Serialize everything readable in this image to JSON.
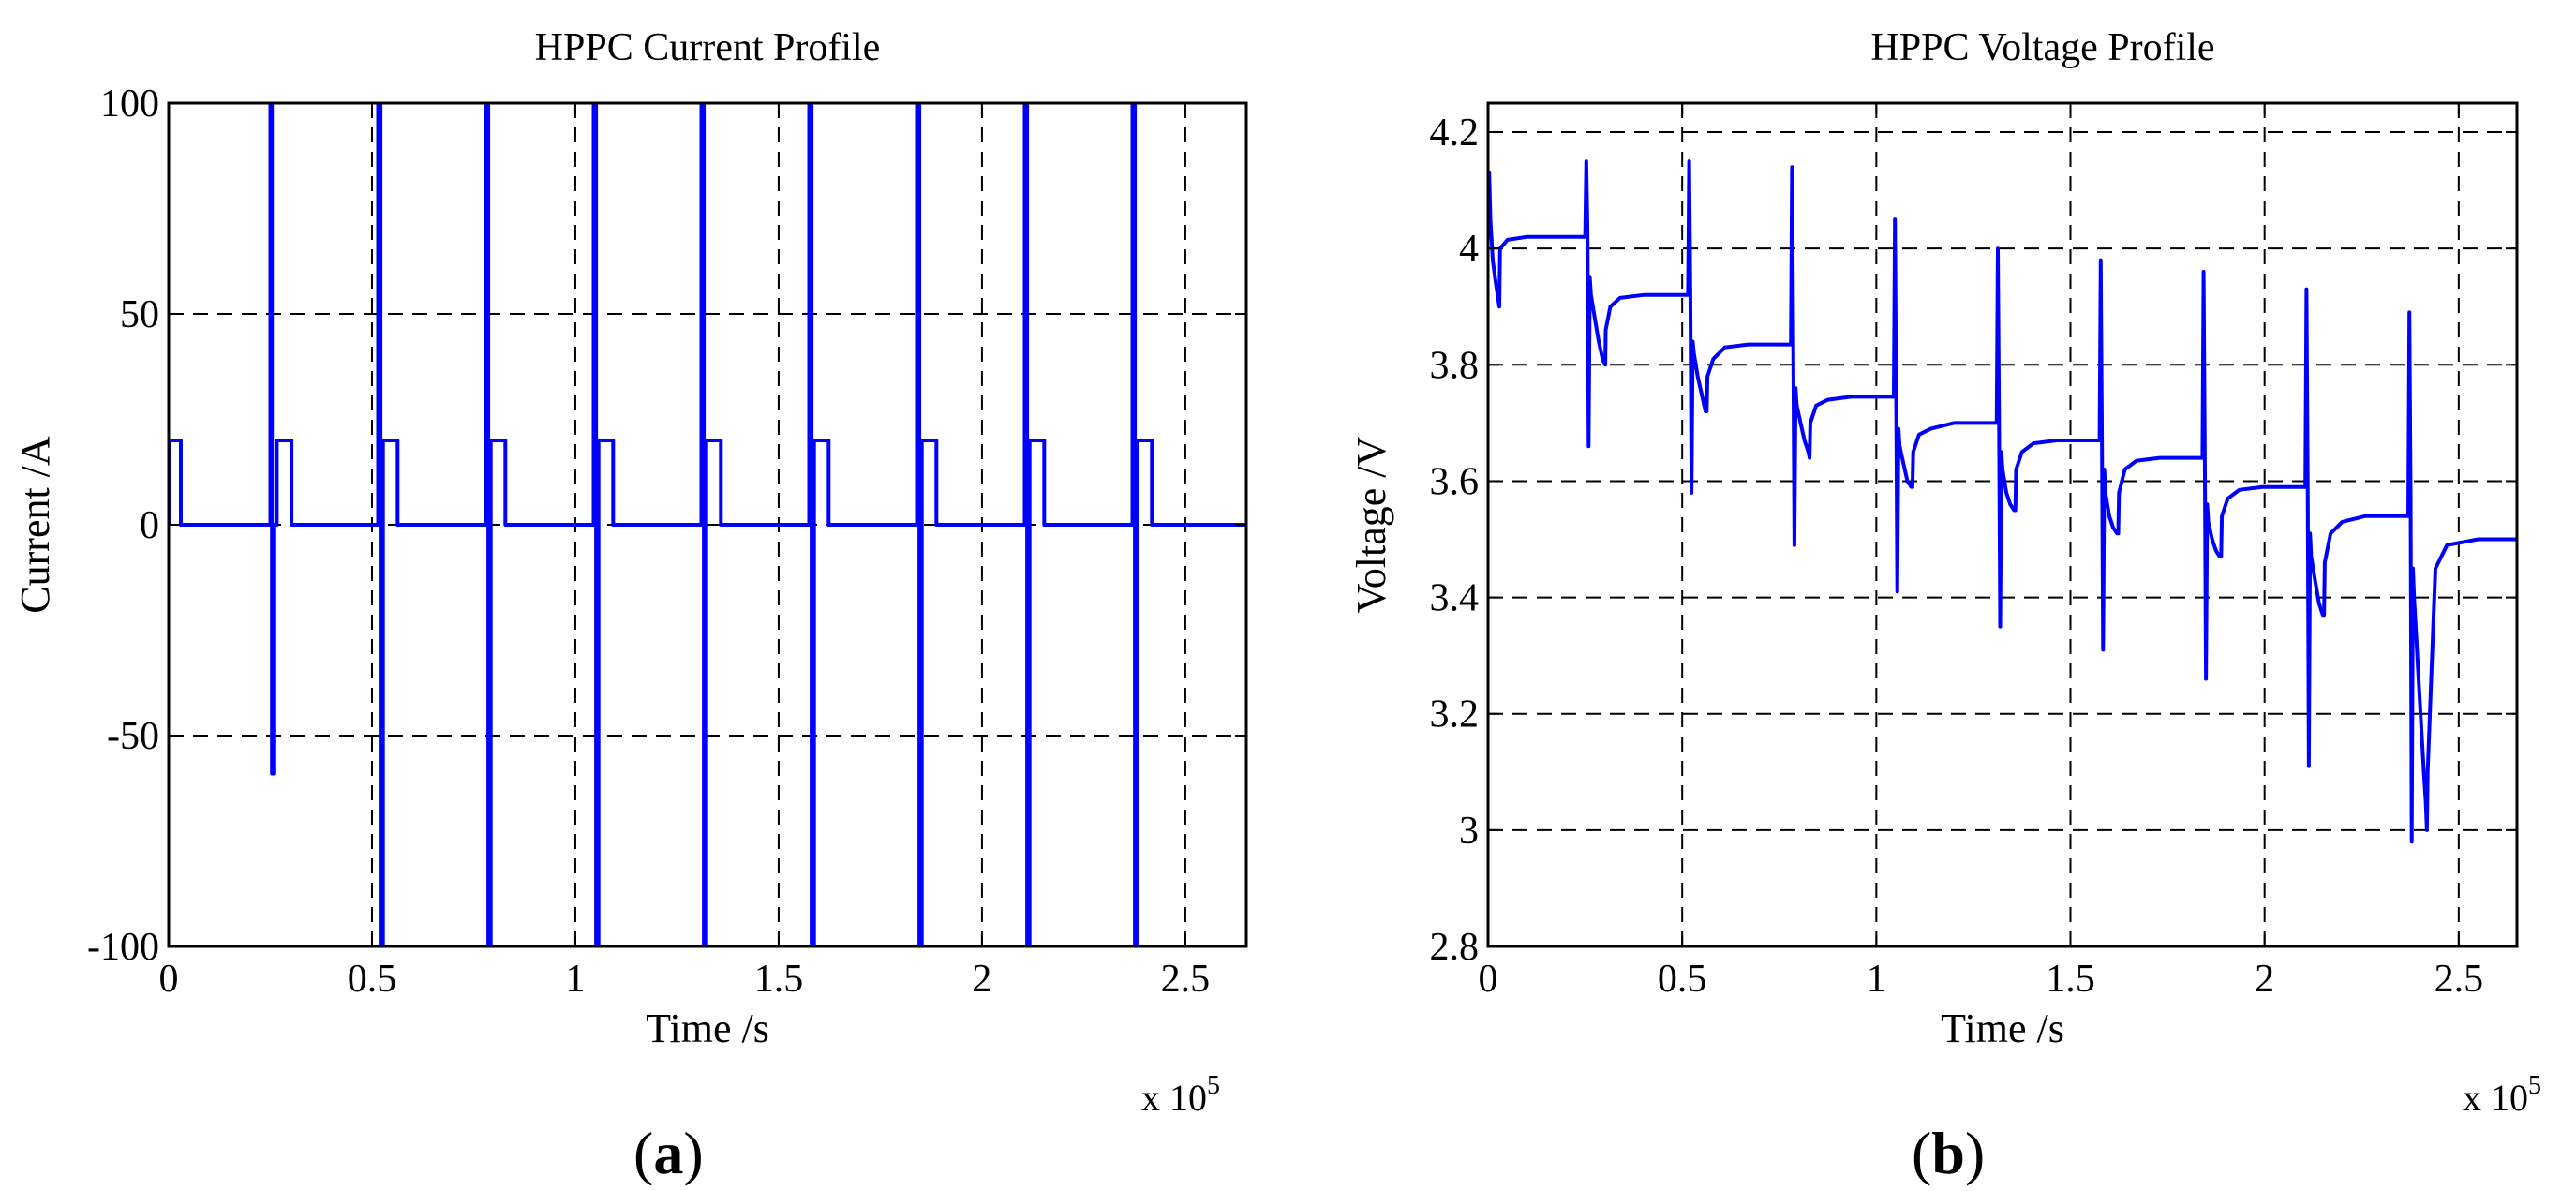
{
  "colors": {
    "series": "#0000ff",
    "grid": "#000000",
    "axes": "#000000",
    "background": "#ffffff"
  },
  "chart_data": [
    {
      "type": "line",
      "panel_label_open": "(",
      "panel_label_letter": "a",
      "panel_label_close": ")",
      "title": "HPPC Current Profile",
      "xlabel": "Time /s",
      "ylabel": "Current /A",
      "x_exponent_text": "x 10",
      "x_exponent_power": "5",
      "x_unit_scale": 100000,
      "xlim": [
        0,
        265000
      ],
      "ylim": [
        -100,
        100
      ],
      "grid": true,
      "xticks": [
        0,
        50000,
        100000,
        150000,
        200000,
        250000
      ],
      "xtick_labels": [
        "0",
        "0.5",
        "1",
        "1.5",
        "2",
        "2.5"
      ],
      "yticks": [
        -100,
        -50,
        0,
        50,
        100
      ],
      "ytick_labels": [
        "-100",
        "-50",
        "0",
        "50",
        "100"
      ],
      "series": [
        {
          "x": [
            0,
            0,
            3000,
            3000,
            25000,
            25000,
            25400,
            25400,
            26000,
            26000,
            26600,
            26600,
            30200,
            30200,
            51500,
            51500,
            52100,
            52100,
            52700,
            52700,
            56300,
            56300,
            78000,
            78000,
            78600,
            78600,
            79200,
            79200,
            82800,
            82800,
            104500,
            104500,
            105100,
            105100,
            105700,
            105700,
            109300,
            109300,
            131000,
            131000,
            131600,
            131600,
            132200,
            132200,
            135800,
            135800,
            157500,
            157500,
            158100,
            158100,
            158700,
            158700,
            162300,
            162300,
            184000,
            184000,
            184600,
            184600,
            185200,
            185200,
            188800,
            188800,
            210500,
            210500,
            211100,
            211100,
            211700,
            211700,
            215300,
            215300,
            237000,
            237000,
            237600,
            237600,
            238200,
            238200,
            241800,
            241800,
            265000
          ],
          "y": [
            0,
            20,
            20,
            0,
            0,
            100,
            100,
            -59,
            -59,
            0,
            0,
            20,
            20,
            0,
            0,
            100,
            100,
            -100,
            -100,
            20,
            20,
            0,
            0,
            100,
            100,
            -100,
            -100,
            20,
            20,
            0,
            0,
            100,
            100,
            -100,
            -100,
            20,
            20,
            0,
            0,
            100,
            100,
            -100,
            -100,
            20,
            20,
            0,
            0,
            100,
            100,
            -100,
            -100,
            20,
            20,
            0,
            0,
            100,
            100,
            -100,
            -100,
            20,
            20,
            0,
            0,
            100,
            100,
            -100,
            -100,
            20,
            20,
            0,
            0,
            100,
            100,
            -100,
            -100,
            20,
            20,
            0,
            0
          ]
        }
      ]
    },
    {
      "type": "line",
      "panel_label_open": "(",
      "panel_label_letter": "b",
      "panel_label_close": ")",
      "title": "HPPC Voltage Profile",
      "xlabel": "Time /s",
      "ylabel": "Voltage /V",
      "x_exponent_text": "x 10",
      "x_exponent_power": "5",
      "x_unit_scale": 100000,
      "xlim": [
        0,
        265000
      ],
      "ylim": [
        2.8,
        4.25
      ],
      "grid": true,
      "xticks": [
        0,
        50000,
        100000,
        150000,
        200000,
        250000
      ],
      "xtick_labels": [
        "0",
        "0.5",
        "1",
        "1.5",
        "2",
        "2.5"
      ],
      "yticks": [
        2.8,
        3.0,
        3.2,
        3.4,
        3.6,
        3.8,
        4.0,
        4.2
      ],
      "ytick_labels": [
        "2.8",
        "3",
        "3.2",
        "3.4",
        "3.6",
        "3.8",
        "4",
        "4.2"
      ],
      "series": [
        {
          "x": [
            0,
            300,
            600,
            1200,
            2000,
            2900,
            3000,
            3100,
            5000,
            10000,
            25000,
            25300,
            25600,
            25900,
            26200,
            26500,
            27500,
            28500,
            29500,
            30200,
            30300,
            31500,
            34000,
            40000,
            51500,
            51800,
            52100,
            52400,
            52700,
            53000,
            54000,
            55000,
            56000,
            56300,
            56500,
            58000,
            61000,
            67000,
            78000,
            78300,
            78600,
            78900,
            79200,
            79500,
            80500,
            81500,
            82500,
            82800,
            83000,
            84500,
            87500,
            93500,
            104500,
            104800,
            105100,
            105400,
            105700,
            106000,
            107000,
            108000,
            109000,
            109300,
            109500,
            111000,
            114000,
            120000,
            131000,
            131300,
            131600,
            131900,
            132200,
            132500,
            133500,
            134500,
            135500,
            135800,
            136000,
            137500,
            140500,
            146500,
            157500,
            157800,
            158100,
            158400,
            158700,
            159000,
            160000,
            161000,
            162000,
            162300,
            162500,
            164000,
            167000,
            173000,
            184000,
            184300,
            184600,
            184900,
            185200,
            185500,
            186500,
            187500,
            188500,
            188800,
            189000,
            190500,
            193500,
            199500,
            210500,
            210800,
            211100,
            211400,
            211700,
            212000,
            213000,
            214000,
            215000,
            215300,
            215500,
            217000,
            220000,
            226000,
            237000,
            237300,
            237600,
            237900,
            238200,
            238500,
            239000,
            239500,
            240000,
            240500,
            241000,
            241500,
            241800,
            242000,
            244000,
            247000,
            255000,
            265000
          ],
          "y": [
            4.02,
            4.13,
            4.05,
            3.98,
            3.94,
            3.9,
            3.95,
            4.0,
            4.015,
            4.02,
            4.02,
            4.15,
            4.03,
            3.66,
            3.95,
            3.92,
            3.88,
            3.84,
            3.81,
            3.8,
            3.86,
            3.9,
            3.915,
            3.92,
            3.92,
            4.15,
            3.92,
            3.58,
            3.84,
            3.82,
            3.78,
            3.75,
            3.72,
            3.72,
            3.78,
            3.81,
            3.83,
            3.835,
            3.835,
            4.14,
            3.83,
            3.49,
            3.76,
            3.73,
            3.7,
            3.67,
            3.65,
            3.64,
            3.7,
            3.73,
            3.74,
            3.745,
            3.745,
            4.05,
            3.75,
            3.41,
            3.69,
            3.66,
            3.63,
            3.6,
            3.59,
            3.59,
            3.65,
            3.68,
            3.69,
            3.7,
            3.7,
            4.0,
            3.7,
            3.35,
            3.65,
            3.62,
            3.58,
            3.56,
            3.55,
            3.55,
            3.62,
            3.65,
            3.665,
            3.67,
            3.67,
            3.98,
            3.67,
            3.31,
            3.62,
            3.58,
            3.54,
            3.52,
            3.51,
            3.51,
            3.58,
            3.62,
            3.635,
            3.64,
            3.64,
            3.96,
            3.64,
            3.26,
            3.56,
            3.53,
            3.5,
            3.48,
            3.47,
            3.47,
            3.54,
            3.57,
            3.585,
            3.59,
            3.59,
            3.93,
            3.6,
            3.11,
            3.51,
            3.47,
            3.43,
            3.39,
            3.37,
            3.37,
            3.46,
            3.51,
            3.53,
            3.54,
            3.54,
            3.89,
            3.58,
            2.98,
            3.45,
            3.4,
            3.34,
            3.28,
            3.22,
            3.16,
            3.1,
            3.05,
            3.0,
            3.1,
            3.45,
            3.49,
            3.5,
            3.5
          ]
        }
      ]
    }
  ]
}
